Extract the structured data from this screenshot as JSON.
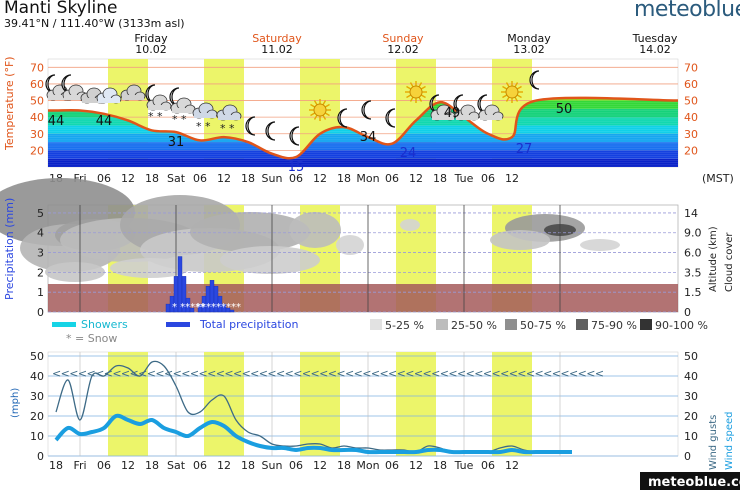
{
  "header": {
    "location": "Manti Skyline",
    "coordinates": "39.41°N / 111.40°W (3133m asl)",
    "brand": "meteoblue",
    "brand_footer": "meteoblue.com"
  },
  "days": [
    {
      "name": "Friday",
      "date": "10.02",
      "weekend": false
    },
    {
      "name": "Saturday",
      "date": "11.02",
      "weekend": true
    },
    {
      "name": "Sunday",
      "date": "12.02",
      "weekend": true
    },
    {
      "name": "Monday",
      "date": "13.02",
      "weekend": false
    },
    {
      "name": "Tuesday",
      "date": "14.02",
      "weekend": false
    }
  ],
  "time_axis": {
    "labels": [
      "18",
      "Fri",
      "06",
      "12",
      "18",
      "Sat",
      "06",
      "12",
      "18",
      "Sun",
      "06",
      "12",
      "18",
      "Mon",
      "06",
      "12",
      "18",
      "Tue",
      "06",
      "12"
    ],
    "timezone": "(MST)"
  },
  "colors": {
    "daylight": "#ecf56a",
    "temperature_line": "#e0551a",
    "weekend_day": "#e0551a",
    "total_precip": "#2b47e0",
    "showers": "#16d4e6",
    "fog_band": "#a55b5b",
    "wind_gust": "#3d6a86",
    "wind_speed": "#1a9ee0",
    "axis_label_blue": "#1e64b4"
  },
  "chart_data": [
    {
      "type": "area",
      "ylabel": "Temperature (°F)",
      "yticks": [
        20,
        30,
        40,
        50,
        60,
        70
      ],
      "ylim": [
        10,
        75
      ],
      "x_hours": [
        0,
        6,
        12,
        18,
        24,
        30,
        36,
        42,
        48,
        54,
        60,
        66,
        72,
        78,
        84,
        90,
        96,
        102,
        108,
        114,
        120
      ],
      "temperature": [
        44,
        44,
        42,
        38,
        32,
        31,
        26,
        28,
        25,
        18,
        16,
        30,
        34,
        28,
        24,
        38,
        49,
        40,
        30,
        28,
        50
      ],
      "labels": [
        {
          "x": 0,
          "value": "44"
        },
        {
          "x": 12,
          "value": "44"
        },
        {
          "x": 30,
          "value": "31"
        },
        {
          "x": 60,
          "value": "15"
        },
        {
          "x": 78,
          "value": "34"
        },
        {
          "x": 88,
          "value": "24"
        },
        {
          "x": 99,
          "value": "49"
        },
        {
          "x": 117,
          "value": "27"
        },
        {
          "x": 127,
          "value": "50"
        }
      ],
      "symbols": [
        {
          "x": 0,
          "icon": "moon-cloud-icon"
        },
        {
          "x": 4,
          "icon": "moon-cloud-icon"
        },
        {
          "x": 9,
          "icon": "cloud-icon"
        },
        {
          "x": 13,
          "icon": "cloud-icon"
        },
        {
          "x": 19,
          "icon": "cloud-icon"
        },
        {
          "x": 25,
          "icon": "moon-snow-icon"
        },
        {
          "x": 31,
          "icon": "moon-snow-icon"
        },
        {
          "x": 37,
          "icon": "cloud-snow-icon"
        },
        {
          "x": 43,
          "icon": "cloud-snow-icon"
        },
        {
          "x": 49,
          "icon": "moon-icon"
        },
        {
          "x": 54,
          "icon": "moon-icon"
        },
        {
          "x": 60,
          "icon": "moon-icon"
        },
        {
          "x": 66,
          "icon": "sun-icon"
        },
        {
          "x": 72,
          "icon": "moon-icon"
        },
        {
          "x": 78,
          "icon": "moon-icon"
        },
        {
          "x": 84,
          "icon": "moon-icon"
        },
        {
          "x": 90,
          "icon": "sun-icon"
        },
        {
          "x": 96,
          "icon": "moon-cloud-icon"
        },
        {
          "x": 102,
          "icon": "moon-cloud-icon"
        },
        {
          "x": 108,
          "icon": "moon-cloud-icon"
        },
        {
          "x": 114,
          "icon": "sun-icon"
        },
        {
          "x": 120,
          "icon": "moon-icon"
        }
      ]
    },
    {
      "type": "bar",
      "ylabel": "Precipitation (mm)",
      "ylabel_right": "Altitude (km)",
      "ylabel_right2": "Cloud cover",
      "yticks": [
        0,
        1,
        2,
        3,
        4,
        5
      ],
      "yticks_right": [
        "0",
        "1.5",
        "3.5",
        "6.0",
        "9.0",
        "14"
      ],
      "ylim": [
        0,
        5
      ],
      "precip_hours": [
        28,
        29,
        30,
        31,
        32,
        33,
        34,
        35,
        36,
        37,
        38,
        39,
        40,
        41,
        42,
        43,
        44,
        45
      ],
      "precip_values": [
        0.4,
        0.8,
        1.8,
        2.8,
        1.8,
        0.7,
        0.2,
        0.0,
        0.4,
        0.8,
        1.3,
        1.6,
        1.3,
        0.8,
        0.4,
        0.2,
        0.1,
        0.0
      ],
      "snow_marker": "* *****",
      "snow_marker_2": "*********",
      "legend": {
        "showers": "Showers",
        "total": "Total precipitation",
        "snow": "* = Snow",
        "cloud_levels": [
          "5-25 %",
          "25-50 %",
          "50-75 %",
          "75-90 %",
          "90-100 %"
        ]
      }
    },
    {
      "type": "line",
      "ylabel": "(mph)",
      "ylabel_right": "Wind gusts",
      "ylabel_right2": "Wind speed",
      "yticks": [
        0,
        10,
        20,
        30,
        40,
        50
      ],
      "yticks_right": [
        "0",
        "10",
        "20",
        "30",
        "40",
        "50"
      ],
      "ylim": [
        0,
        52
      ],
      "x_hours": [
        0,
        3,
        6,
        9,
        12,
        15,
        18,
        21,
        24,
        27,
        30,
        33,
        36,
        39,
        42,
        45,
        48,
        51,
        54,
        57,
        60,
        63,
        66,
        69,
        72,
        75,
        78,
        81,
        84,
        87,
        90,
        93,
        96,
        99,
        102,
        105,
        108,
        111,
        114,
        117,
        120,
        123,
        126,
        129
      ],
      "gusts": [
        22,
        38,
        18,
        40,
        40,
        45,
        44,
        40,
        47,
        45,
        35,
        22,
        22,
        28,
        30,
        18,
        12,
        10,
        6,
        5,
        5,
        6,
        6,
        4,
        5,
        4,
        4,
        3,
        3,
        3,
        2,
        5,
        4,
        2,
        2,
        2,
        2,
        4,
        5,
        3,
        2,
        2,
        2,
        2
      ],
      "speed": [
        8,
        14,
        11,
        12,
        14,
        20,
        18,
        16,
        18,
        14,
        12,
        10,
        14,
        17,
        15,
        10,
        7,
        5,
        4,
        4,
        3,
        4,
        4,
        3,
        3,
        3,
        2,
        2,
        2,
        2,
        2,
        3,
        3,
        2,
        2,
        2,
        2,
        2,
        3,
        2,
        2,
        2,
        2,
        2
      ],
      "direction_marker": "<<<<<<<<<<<<<<<<<<<<<<<<<<<<<<<<<<<<<<<<<<<<<<<<<<<<<<<<<<<<<<<<"
    }
  ]
}
